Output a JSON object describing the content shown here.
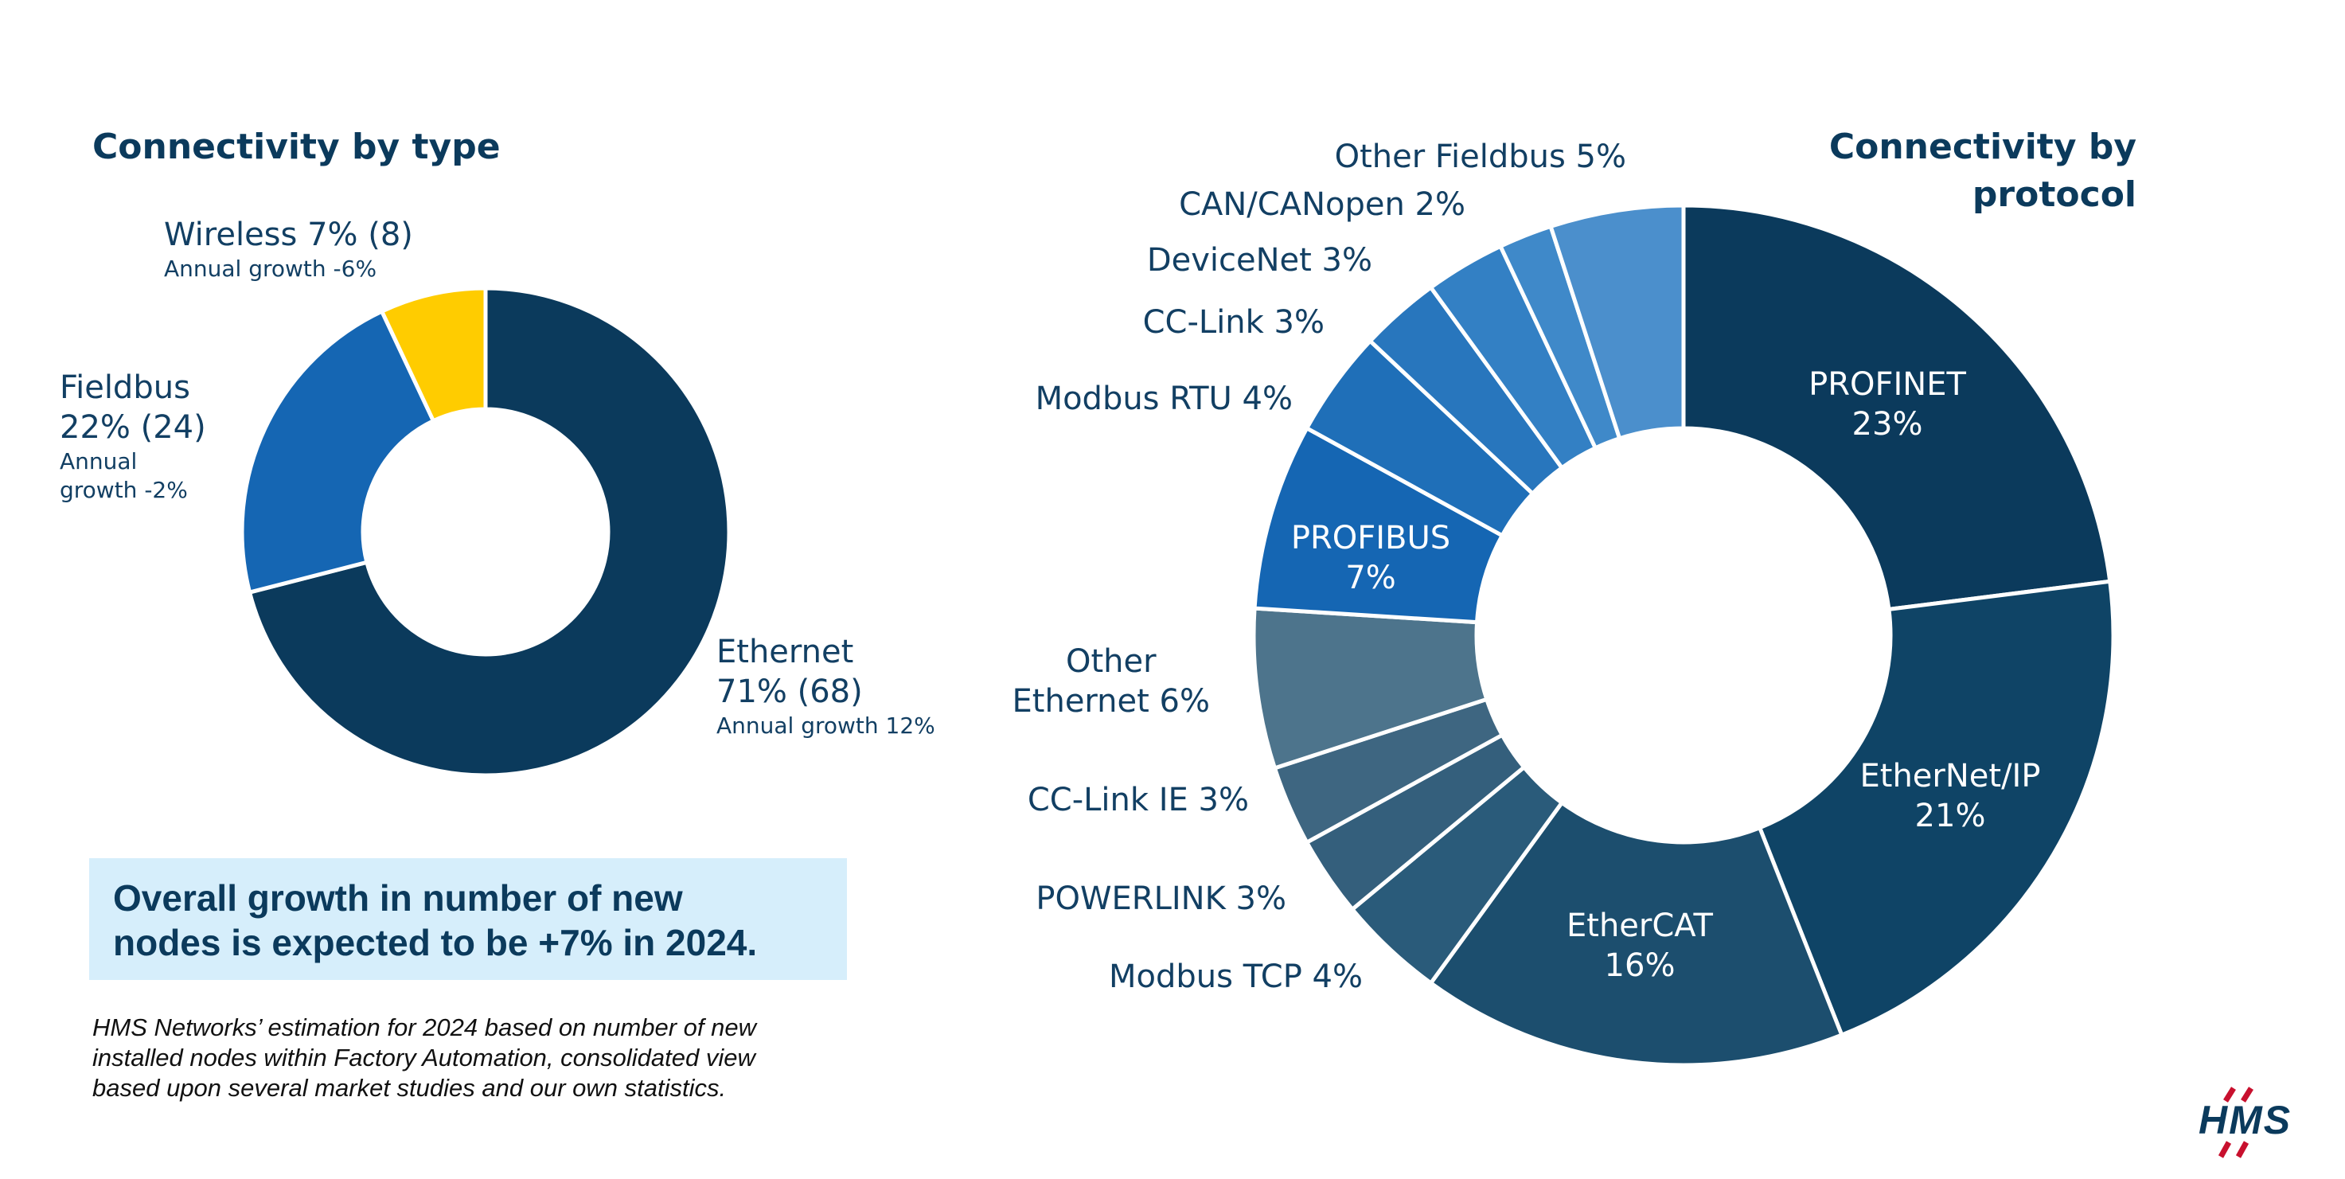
{
  "chart_data": [
    {
      "type": "pie",
      "title": "Connectivity by type",
      "categories": [
        "Ethernet",
        "Fieldbus",
        "Wireless"
      ],
      "values": [
        71,
        22,
        7
      ],
      "colors": [
        "#0b3a5c",
        "#1566b3",
        "#ffcc00"
      ],
      "labels": [
        {
          "line1": "Ethernet",
          "line2": "71% (68)",
          "sub": "Annual growth 12%"
        },
        {
          "line1": "Fieldbus",
          "line2": "22% (24)",
          "sub1": "Annual",
          "sub2": "growth -2%"
        },
        {
          "line1": "Wireless 7% (8)",
          "sub": "Annual growth -6%"
        }
      ]
    },
    {
      "type": "pie",
      "title_line1": "Connectivity by",
      "title_line2": "protocol",
      "categories": [
        "PROFINET",
        "EtherNet/IP",
        "EtherCAT",
        "Modbus TCP",
        "POWERLINK",
        "CC-Link IE",
        "Other Ethernet",
        "PROFIBUS",
        "Modbus RTU",
        "CC-Link",
        "DeviceNet",
        "CAN/CANopen",
        "Other Fieldbus"
      ],
      "values": [
        23,
        21,
        16,
        4,
        3,
        3,
        6,
        7,
        4,
        3,
        3,
        2,
        5
      ],
      "colors": [
        "#0b3a5c",
        "#0f4466",
        "#1c4e6e",
        "#2a5b7a",
        "#345f7c",
        "#3e6681",
        "#4d748c",
        "#1566b3",
        "#1f6fb8",
        "#2876bd",
        "#3380c4",
        "#3f89c9",
        "#4b8fcc"
      ],
      "labels": {
        "profinet": [
          "PROFINET",
          "23%"
        ],
        "ethernetip": [
          "EtherNet/IP",
          "21%"
        ],
        "ethercat": [
          "EtherCAT",
          "16%"
        ],
        "modbus_tcp": "Modbus TCP 4%",
        "powerlink": "POWERLINK 3%",
        "cclink_ie": "CC-Link IE 3%",
        "other_ethernet": [
          "Other",
          "Ethernet 6%"
        ],
        "profibus": [
          "PROFIBUS",
          "7%"
        ],
        "modbus_rtu": "Modbus RTU 4%",
        "cclink": "CC-Link 3%",
        "devicenet": "DeviceNet 3%",
        "canopen": "CAN/CANopen 2%",
        "other_fieldbus": "Other Fieldbus 5%"
      }
    }
  ],
  "callout": {
    "line1": "Overall growth in number of new",
    "line2": "nodes is expected to be +7% in 2024."
  },
  "footnote": {
    "line1": "HMS Networks’ estimation for 2024 based on number of new",
    "line2": "installed nodes within Factory Automation, consolidated view",
    "line3": "based upon several market studies and our own statistics."
  },
  "logo": {
    "text": "HMS",
    "colors": [
      "#c8102e",
      "#0b3a5c"
    ]
  }
}
